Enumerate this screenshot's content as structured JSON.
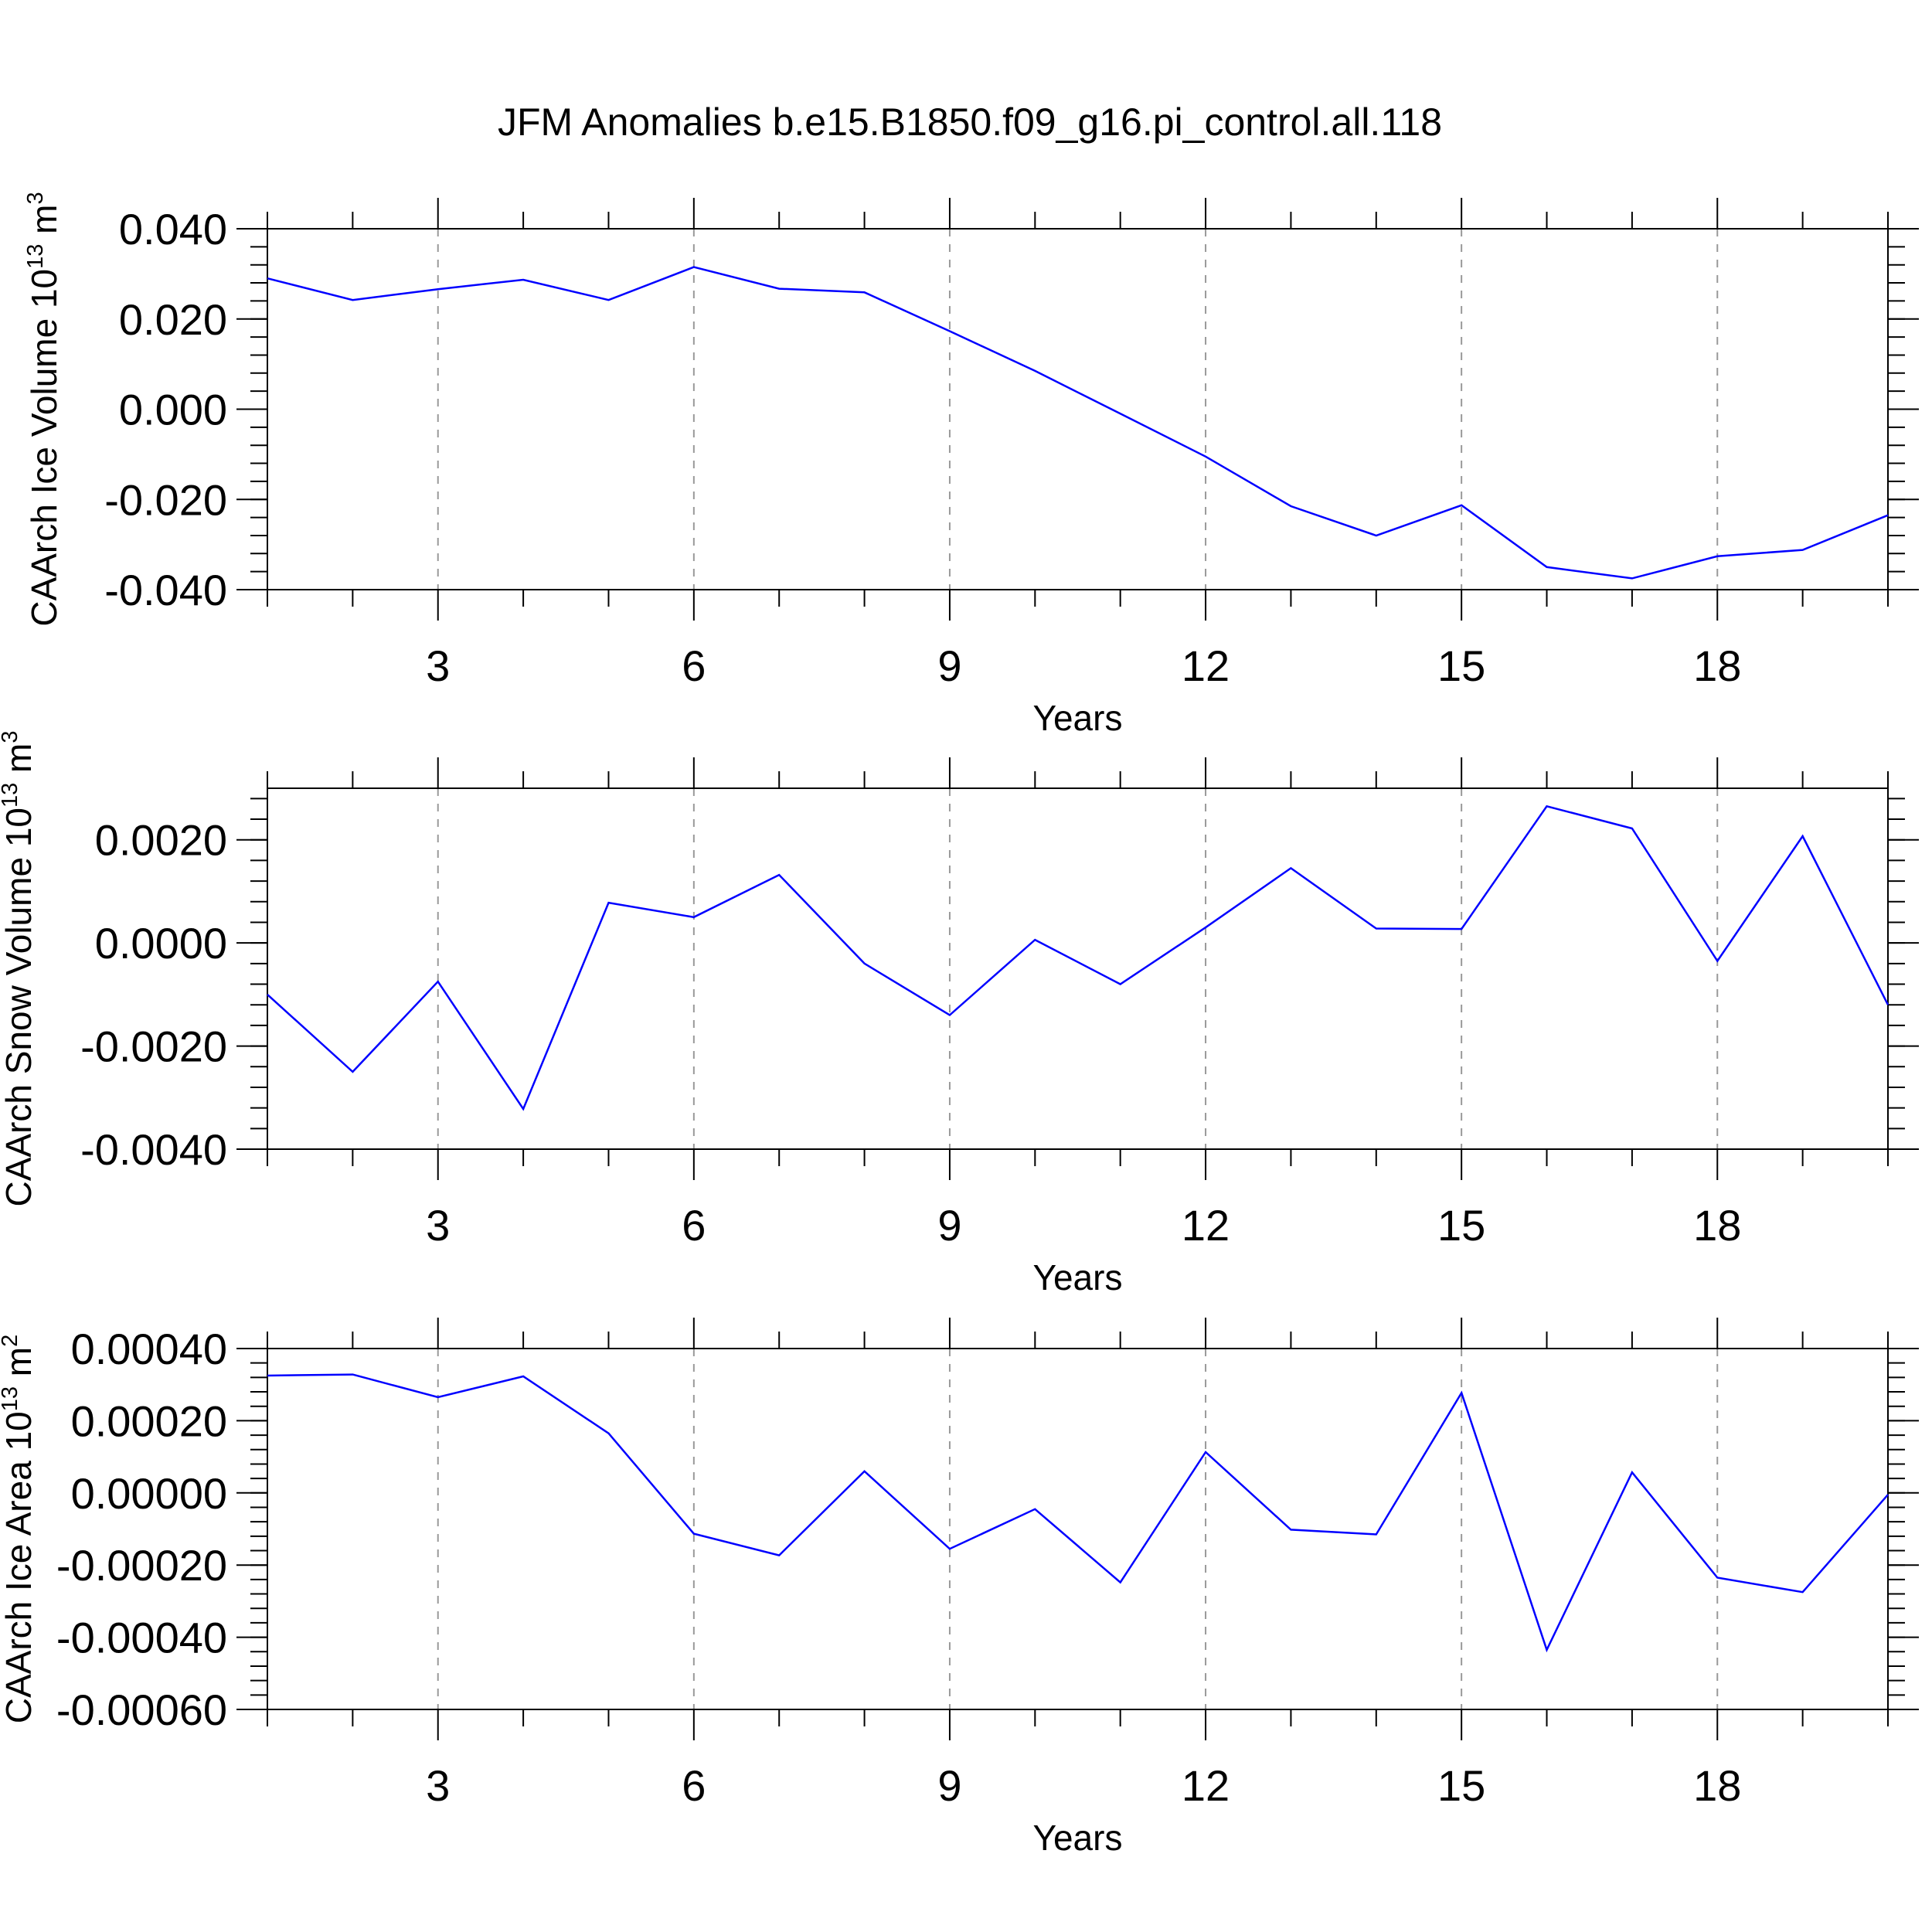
{
  "title": "JFM Anomalies b.e15.B1850.f09_g16.pi_control.all.118",
  "colors": {
    "line": "#0000ff",
    "grid": "#999999",
    "axes": "#000000",
    "background": "#ffffff"
  },
  "chart_data": [
    {
      "type": "line",
      "ylabel": {
        "text": "CAArch Ice Volume 10",
        "exponent": "13",
        "unit": "m",
        "unit_exponent": "3"
      },
      "xlabel": "Years",
      "xlim": [
        1,
        20
      ],
      "ylim": [
        -0.04,
        0.04
      ],
      "xticks": [
        3,
        6,
        9,
        12,
        15,
        18
      ],
      "xtick_labels": [
        "3",
        "6",
        "9",
        "12",
        "15",
        "18"
      ],
      "yticks": [
        -0.04,
        -0.02,
        0.0,
        0.02,
        0.04
      ],
      "ytick_labels": [
        "-0.040",
        "-0.020",
        "0.000",
        "0.020",
        "0.040"
      ],
      "grid": "x-dashed",
      "x": [
        1,
        2,
        3,
        4,
        5,
        6,
        7,
        8,
        9,
        10,
        11,
        12,
        13,
        14,
        15,
        16,
        17,
        18,
        19,
        20
      ],
      "values": [
        0.029,
        0.0242,
        0.0266,
        0.0287,
        0.0242,
        0.0315,
        0.0267,
        0.0259,
        0.0173,
        0.0085,
        -0.001,
        -0.0105,
        -0.0215,
        -0.028,
        -0.0213,
        -0.035,
        -0.0375,
        -0.0326,
        -0.0312,
        -0.0235
      ]
    },
    {
      "type": "line",
      "ylabel": {
        "text": "CAArch Snow Volume 10",
        "exponent": "13",
        "unit": "m",
        "unit_exponent": "3"
      },
      "xlabel": "Years",
      "xlim": [
        1,
        20
      ],
      "ylim": [
        -0.004,
        0.003
      ],
      "xticks": [
        3,
        6,
        9,
        12,
        15,
        18
      ],
      "xtick_labels": [
        "3",
        "6",
        "9",
        "12",
        "15",
        "18"
      ],
      "yticks": [
        -0.004,
        -0.002,
        0.0,
        0.002
      ],
      "ytick_labels": [
        "-0.0040",
        "-0.0020",
        "0.0000",
        "0.0020"
      ],
      "grid": "x-dashed",
      "x": [
        1,
        2,
        3,
        4,
        5,
        6,
        7,
        8,
        9,
        10,
        11,
        12,
        13,
        14,
        15,
        16,
        17,
        18,
        19,
        20
      ],
      "values": [
        -0.001,
        -0.0025,
        -0.00075,
        -0.00322,
        0.00078,
        0.0005,
        0.00132,
        -0.0004,
        -0.0014,
        6e-05,
        -0.0008,
        0.0003,
        0.00145,
        0.00028,
        0.00027,
        0.00265,
        0.00222,
        -0.00035,
        0.00207,
        -0.0012
      ]
    },
    {
      "type": "line",
      "ylabel": {
        "text": "CAArch Ice Area 10",
        "exponent": "13",
        "unit": "m",
        "unit_exponent": "2"
      },
      "xlabel": "Years",
      "xlim": [
        1,
        20
      ],
      "ylim": [
        -0.0006,
        0.0004
      ],
      "xticks": [
        3,
        6,
        9,
        12,
        15,
        18
      ],
      "xtick_labels": [
        "3",
        "6",
        "9",
        "12",
        "15",
        "18"
      ],
      "yticks": [
        -0.0006,
        -0.0004,
        -0.0002,
        0.0,
        0.0002,
        0.0004
      ],
      "ytick_labels": [
        "-0.00060",
        "-0.00040",
        "-0.00020",
        "0.00000",
        "0.00020",
        "0.00040"
      ],
      "grid": "x-dashed",
      "x": [
        1,
        2,
        3,
        4,
        5,
        6,
        7,
        8,
        9,
        10,
        11,
        12,
        13,
        14,
        15,
        16,
        17,
        18,
        19,
        20
      ],
      "values": [
        0.000325,
        0.000328,
        0.000265,
        0.000323,
        0.000165,
        -0.000113,
        -0.000173,
        6e-05,
        -0.000155,
        -4.5e-05,
        -0.000248,
        0.000113,
        -0.000102,
        -0.000115,
        0.000277,
        -0.000435,
        5.7e-05,
        -0.000235,
        -0.000275,
        -5e-06
      ]
    }
  ]
}
